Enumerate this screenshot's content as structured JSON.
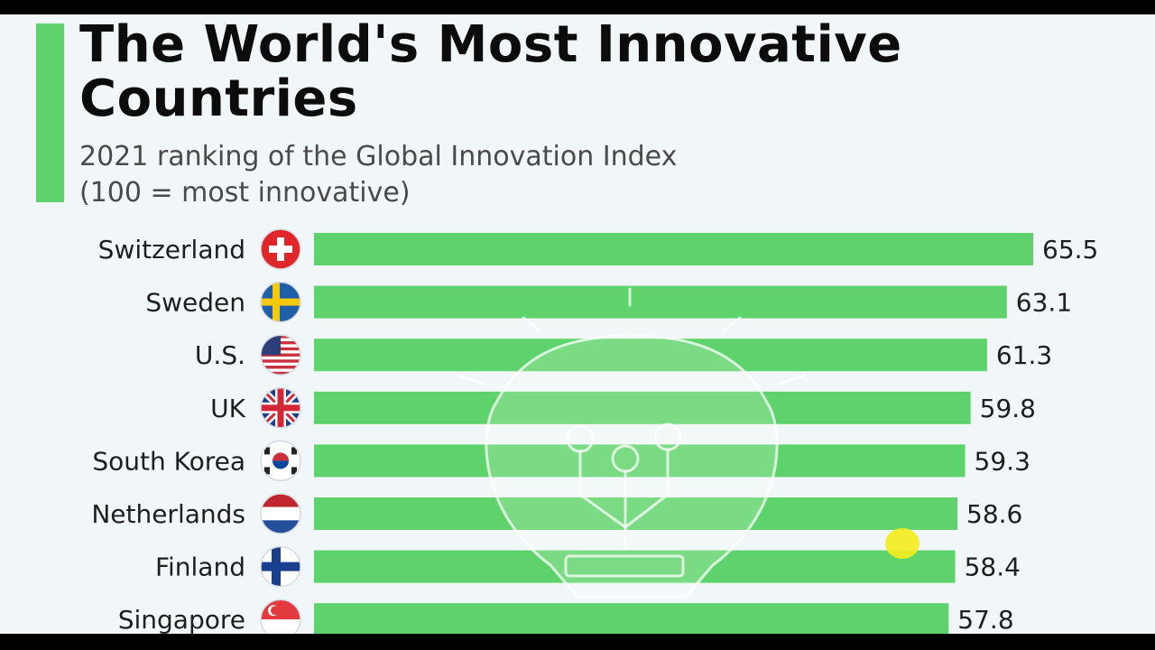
{
  "header": {
    "title": "The World's Most Innovative Countries",
    "subtitle_line1": "2021 ranking of the Global Innovation Index",
    "subtitle_line2": "(100 = most innovative)"
  },
  "colors": {
    "bar": "#5ed36b",
    "accent": "#5ed36b",
    "background": "#f1f7f8",
    "text": "#0c0c0c"
  },
  "chart_data": {
    "type": "bar",
    "orientation": "horizontal",
    "title": "The World's Most Innovative Countries",
    "subtitle": "2021 ranking of the Global Innovation Index (100 = most innovative)",
    "categories": [
      "Switzerland",
      "Sweden",
      "U.S.",
      "UK",
      "South Korea",
      "Netherlands",
      "Finland",
      "Singapore"
    ],
    "flags": [
      "switzerland-flag-icon",
      "sweden-flag-icon",
      "us-flag-icon",
      "uk-flag-icon",
      "south-korea-flag-icon",
      "netherlands-flag-icon",
      "finland-flag-icon",
      "singapore-flag-icon"
    ],
    "values": [
      65.5,
      63.1,
      61.3,
      59.8,
      59.3,
      58.6,
      58.4,
      57.8
    ],
    "value_labels": [
      "65.5",
      "63.1",
      "61.3",
      "59.8",
      "59.3",
      "58.6",
      "58.4",
      "57.8"
    ],
    "xlim": [
      0,
      65.5
    ],
    "grid": false,
    "legend": "none"
  }
}
